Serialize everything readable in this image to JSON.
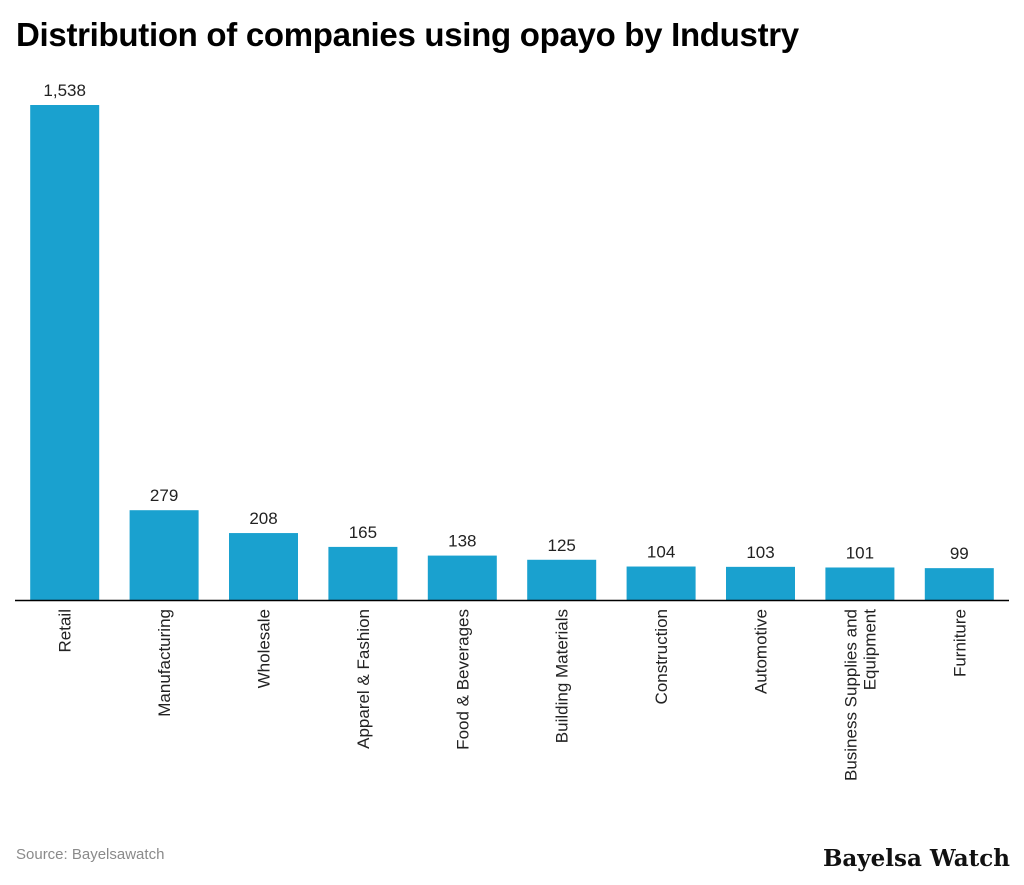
{
  "page": {
    "source": "Source: Bayelsawatch",
    "brand": "Bayelsa Watch"
  },
  "colors": {
    "bar": "#1aa1cf",
    "axis": "#000000",
    "text": "#222222"
  },
  "chart_data": {
    "type": "bar",
    "title": "Distribution of companies using opayo by Industry",
    "xlabel": "",
    "ylabel": "",
    "ylim": [
      0,
      1538
    ],
    "grid": false,
    "legend": "none",
    "categories": [
      "Retail",
      "Manufacturing",
      "Wholesale",
      "Apparel & Fashion",
      "Food & Beverages",
      "Building Materials",
      "Construction",
      "Automotive",
      "Business Supplies and Equipment",
      "Furniture"
    ],
    "values": [
      1538,
      279,
      208,
      165,
      138,
      125,
      104,
      103,
      101,
      99
    ],
    "value_labels": [
      "1,538",
      "279",
      "208",
      "165",
      "138",
      "125",
      "104",
      "103",
      "101",
      "99"
    ]
  }
}
